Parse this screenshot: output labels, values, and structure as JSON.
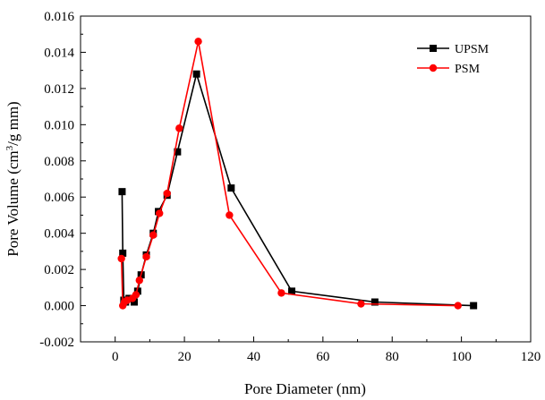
{
  "chart_data": {
    "type": "line",
    "title": "",
    "xlabel": "Pore Diameter (nm)",
    "ylabel": {
      "pre": "Pore Volume (cm",
      "sup": "3",
      "post": "/g mm)"
    },
    "xlim": [
      -10,
      120
    ],
    "ylim": [
      -0.002,
      0.016
    ],
    "xticks": [
      "0",
      "20",
      "40",
      "60",
      "80",
      "100",
      "120"
    ],
    "yticks": [
      "-0.002",
      "0.000",
      "0.002",
      "0.004",
      "0.006",
      "0.008",
      "0.010",
      "0.012",
      "0.014",
      "0.016"
    ],
    "grid": false,
    "legend_position": "top-right",
    "series": [
      {
        "name": "UPSM",
        "color": "#000000",
        "marker": "square",
        "x": [
          2.0,
          2.2,
          2.5,
          3.0,
          4.0,
          5.5,
          6.5,
          7.5,
          9.0,
          11.0,
          12.5,
          15.0,
          18.0,
          23.5,
          33.5,
          51.0,
          75.0,
          103.5
        ],
        "y": [
          0.0063,
          0.0029,
          0.0003,
          0.0002,
          0.0004,
          0.0002,
          0.0008,
          0.0017,
          0.0028,
          0.004,
          0.0052,
          0.0061,
          0.0085,
          0.0128,
          0.0065,
          0.0008,
          0.0002,
          0.0
        ]
      },
      {
        "name": "PSM",
        "color": "#ff0000",
        "marker": "circle",
        "x": [
          1.8,
          2.2,
          2.7,
          3.5,
          5.0,
          6.0,
          7.0,
          9.0,
          11.0,
          12.8,
          15.0,
          18.5,
          24.0,
          33.0,
          48.0,
          71.0,
          99.0
        ],
        "y": [
          0.0026,
          0.0,
          0.0002,
          0.0003,
          0.0004,
          0.0006,
          0.0014,
          0.0027,
          0.0039,
          0.0051,
          0.0062,
          0.0098,
          0.0146,
          0.005,
          0.0007,
          0.0001,
          0.0
        ]
      }
    ]
  }
}
